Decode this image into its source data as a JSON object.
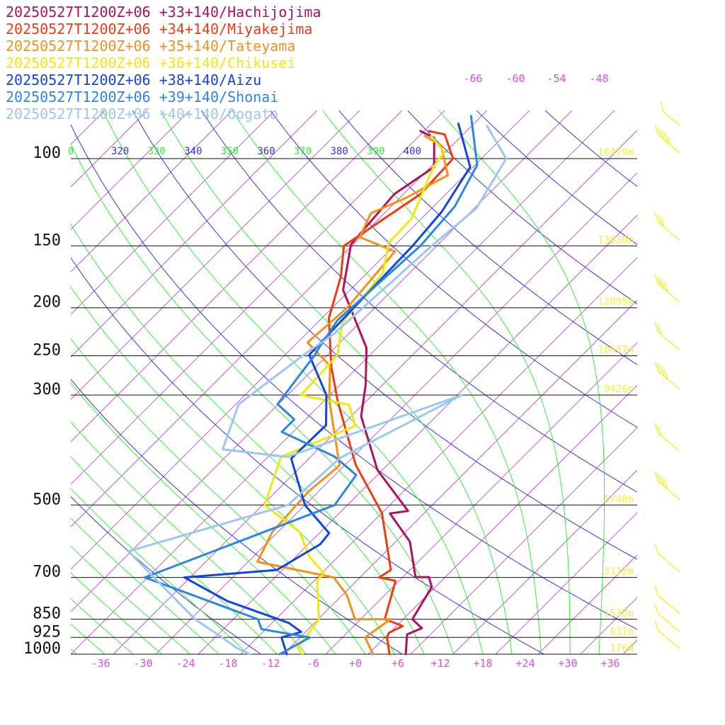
{
  "legend": [
    {
      "label": "20250527T1200Z+06 +33+140/Hachijojima",
      "color": "#b0105e"
    },
    {
      "label": "20250527T1200Z+06 +34+140/Miyakejima",
      "color": "#f03a12"
    },
    {
      "label": "20250527T1200Z+06 +35+140/Tateyama",
      "color": "#f5901a"
    },
    {
      "label": "20250527T1200Z+06 +36+140/Chikusei",
      "color": "#f2e80c"
    },
    {
      "label": "20250527T1200Z+06 +38+140/Aizu",
      "color": "#1144e0"
    },
    {
      "label": "20250527T1200Z+06 +39+140/Shonai",
      "color": "#2a86e6"
    },
    {
      "label": "20250527T1200Z+06 +40+140/Oogata",
      "color": "#9cc6f2"
    }
  ],
  "colors": {
    "isotherm": "#d84fd8",
    "dry_adiabat": "#3333dd",
    "moist_adiabat": "#33ee33",
    "height_label": "#f2f03a",
    "wind_barb": "#f2f03a",
    "isobar": "#111111"
  },
  "chart_data": {
    "type": "skew-t log-p",
    "pressure_levels": [
      {
        "p": 100,
        "label": "100",
        "height": "16479m"
      },
      {
        "p": 150,
        "label": "150",
        "height": "13930m"
      },
      {
        "p": 200,
        "label": "200",
        "height": "12095m"
      },
      {
        "p": 250,
        "label": "250",
        "height": "10637m"
      },
      {
        "p": 300,
        "label": "300",
        "height": "9426m"
      },
      {
        "p": 500,
        "label": "500",
        "height": "5740m"
      },
      {
        "p": 700,
        "label": "700",
        "height": "3112m"
      },
      {
        "p": 850,
        "label": "850",
        "height": "1532m"
      },
      {
        "p": 925,
        "label": "925",
        "height": "831m"
      },
      {
        "p": 1000,
        "label": "1000",
        "height": "176m"
      }
    ],
    "temperature_ticks": [
      "-36",
      "-30",
      "-24",
      "-18",
      "-12",
      "-6",
      "+0",
      "+6",
      "+12",
      "+18",
      "+24",
      "+30",
      "+36"
    ],
    "theta_labels": [
      {
        "text": "0",
        "color": "#33ee33"
      },
      {
        "text": "320",
        "color": "#3333dd"
      },
      {
        "text": "330",
        "color": "#33ee33"
      },
      {
        "text": "340",
        "color": "#3333dd"
      },
      {
        "text": "350",
        "color": "#33ee33"
      },
      {
        "text": "360",
        "color": "#3333dd"
      },
      {
        "text": "370",
        "color": "#33ee33"
      },
      {
        "text": "380",
        "color": "#3333dd"
      },
      {
        "text": "390",
        "color": "#33ee33"
      },
      {
        "text": "400",
        "color": "#3333dd"
      },
      {
        "text": "4",
        "color": "#33ee33"
      }
    ],
    "upper_temp_labels": [
      "-66",
      "-60",
      "-54",
      "-48"
    ],
    "temp_range": [
      -40,
      40
    ],
    "pressure_range": [
      100,
      1000
    ],
    "profiles": [
      {
        "station": "Hachijojima",
        "color": "#b0105e",
        "points": [
          [
            -64.5,
            88
          ],
          [
            -61.6,
            90.8
          ],
          [
            -57.5,
            104
          ],
          [
            -59.3,
            118
          ],
          [
            -58.3,
            149
          ],
          [
            -53,
            184
          ],
          [
            -41.5,
            241
          ],
          [
            -36.4,
            286
          ],
          [
            -32.6,
            331
          ],
          [
            -22.7,
            425
          ],
          [
            -12.6,
            514
          ],
          [
            -14.8,
            520
          ],
          [
            -8,
            593
          ],
          [
            -2.2,
            699
          ],
          [
            -0.3,
            699
          ],
          [
            1.5,
            732
          ],
          [
            3.3,
            850
          ],
          [
            5.9,
            886
          ],
          [
            4.7,
            912
          ],
          [
            7.3,
            1000
          ]
        ]
      },
      {
        "station": "Miyakejima",
        "color": "#f03a12",
        "points": [
          [
            -63.3,
            88
          ],
          [
            -60.6,
            89.4
          ],
          [
            -56,
            100
          ],
          [
            -55.6,
            118
          ],
          [
            -59.1,
            150
          ],
          [
            -55.2,
            173
          ],
          [
            -51,
            210
          ],
          [
            -43.8,
            263
          ],
          [
            -38,
            309
          ],
          [
            -26.5,
            415
          ],
          [
            -16,
            519
          ],
          [
            -6.7,
            676
          ],
          [
            -7.3,
            700
          ],
          [
            -4.5,
            711
          ],
          [
            -0.6,
            850
          ],
          [
            2.9,
            877
          ],
          [
            1.9,
            905
          ],
          [
            2.3,
            925
          ],
          [
            5,
            1000
          ]
        ]
      },
      {
        "station": "Tateyama",
        "color": "#f5901a",
        "points": [
          [
            -63.2,
            90
          ],
          [
            -59.6,
            94
          ],
          [
            -54.4,
            108
          ],
          [
            -57.1,
            120
          ],
          [
            -59.9,
            129
          ],
          [
            -58.1,
            144
          ],
          [
            -51.1,
            154
          ],
          [
            -49.9,
            200
          ],
          [
            -50.6,
            235
          ],
          [
            -44.1,
            262
          ],
          [
            -39.4,
            307
          ],
          [
            -28.7,
            416
          ],
          [
            -29.4,
            469
          ],
          [
            -28.8,
            567
          ],
          [
            -26.7,
            651
          ],
          [
            -13.7,
            700
          ],
          [
            -9.4,
            759
          ],
          [
            -4.8,
            850
          ],
          [
            0.2,
            850
          ],
          [
            -0.8,
            925
          ],
          [
            2.7,
            1000
          ]
        ]
      },
      {
        "station": "Chikusei",
        "color": "#f2e80c",
        "points": [
          [
            -62.3,
            90
          ],
          [
            -58.2,
            97
          ],
          [
            -57.6,
            104
          ],
          [
            -53.4,
            132
          ],
          [
            -53.2,
            148
          ],
          [
            -49.8,
            170
          ],
          [
            -48.5,
            214
          ],
          [
            -44.6,
            249
          ],
          [
            -44.1,
            300
          ],
          [
            -35.9,
            314
          ],
          [
            -32.1,
            346
          ],
          [
            -38.2,
            400
          ],
          [
            -33.7,
            500
          ],
          [
            -25,
            566
          ],
          [
            -20.2,
            634
          ],
          [
            -15.6,
            688
          ],
          [
            -15.7,
            708
          ],
          [
            -9.9,
            850
          ],
          [
            -9.2,
            925
          ],
          [
            -8.9,
            970
          ],
          [
            -7.3,
            1000
          ]
        ]
      },
      {
        "station": "Aizu",
        "color": "#1144e0",
        "points": [
          [
            -60.2,
            85
          ],
          [
            -52.4,
            104
          ],
          [
            -50.1,
            128
          ],
          [
            -49.4,
            150
          ],
          [
            -48.8,
            222
          ],
          [
            -48.6,
            249
          ],
          [
            -40.5,
            300
          ],
          [
            -36.3,
            345
          ],
          [
            -36.5,
            403
          ],
          [
            -28,
            500
          ],
          [
            -20.6,
            570
          ],
          [
            -20.3,
            600
          ],
          [
            -22.8,
            676
          ],
          [
            -34.8,
            700
          ],
          [
            -25.4,
            781
          ],
          [
            -13.6,
            865
          ],
          [
            -10.6,
            902
          ],
          [
            -12.6,
            925
          ],
          [
            -9.5,
            1000
          ]
        ]
      },
      {
        "station": "Shonai",
        "color": "#2a86e6",
        "points": [
          [
            -59.5,
            82
          ],
          [
            -51.7,
            103
          ],
          [
            -49,
            125
          ],
          [
            -48.3,
            150
          ],
          [
            -49.5,
            212
          ],
          [
            -48.3,
            239
          ],
          [
            -47.8,
            249
          ],
          [
            -46.1,
            313
          ],
          [
            -41.6,
            336
          ],
          [
            -41.6,
            356
          ],
          [
            -30.7,
            399
          ],
          [
            -25,
            435
          ],
          [
            -23.8,
            500
          ],
          [
            -40.4,
            700
          ],
          [
            -18.5,
            850
          ],
          [
            -16.6,
            890
          ],
          [
            -8.6,
            925
          ],
          [
            -10.5,
            1000
          ]
        ]
      },
      {
        "station": "Oogata",
        "color": "#9cc6f2",
        "points": [
          [
            -55.8,
            86
          ],
          [
            -48.5,
            100
          ],
          [
            -45.7,
            126
          ],
          [
            -46.7,
            150
          ],
          [
            -48.1,
            226
          ],
          [
            -49.3,
            247
          ],
          [
            -51.6,
            313
          ],
          [
            -47.5,
            386
          ],
          [
            -37.3,
            400
          ],
          [
            -21.4,
            300
          ],
          [
            -29.7,
            402
          ],
          [
            -30.4,
            500
          ],
          [
            -46.4,
            620
          ],
          [
            -27.4,
            850
          ],
          [
            -21,
            925
          ],
          [
            -17.6,
            970
          ],
          [
            -14.7,
            1000
          ]
        ]
      }
    ],
    "wind_barbs": [
      {
        "p": 88,
        "shaft": "short",
        "barbs": 1
      },
      {
        "p": 100,
        "speed_kt": 50,
        "barbs": 5
      },
      {
        "p": 150,
        "speed_kt": 30,
        "barbs": 3
      },
      {
        "p": 200,
        "speed_kt": 45,
        "barbs": 4
      },
      {
        "p": 250,
        "speed_kt": 20,
        "barbs": 2
      },
      {
        "p": 300,
        "speed_kt": 40,
        "barbs": 4
      },
      {
        "p": 400,
        "speed_kt": 15,
        "barbs": 2
      },
      {
        "p": 500,
        "speed_kt": 40,
        "barbs": 4
      },
      {
        "p": 700,
        "speed_kt": 5,
        "barbs": 1
      },
      {
        "p": 850,
        "speed_kt": 10,
        "barbs": 1
      },
      {
        "p": 925,
        "speed_kt": 10,
        "barbs": 1
      },
      {
        "p": 1000,
        "speed_kt": 5,
        "barbs": 1
      }
    ]
  }
}
